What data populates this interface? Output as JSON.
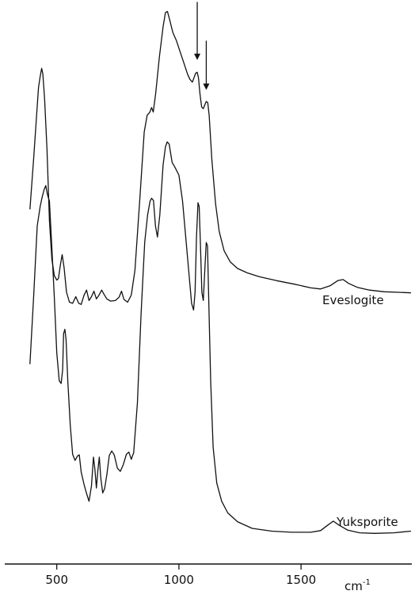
{
  "chart_data": {
    "type": "line",
    "x_axis": {
      "range": [
        300,
        1960
      ],
      "ticks": [
        {
          "value": 500,
          "label": "500"
        },
        {
          "value": 1000,
          "label": "1000"
        },
        {
          "value": 1500,
          "label": "1500"
        }
      ],
      "unit_label": "cm",
      "unit_exponent": "-1"
    },
    "y_axis": {
      "range": [
        0,
        100
      ],
      "visible": false
    },
    "grid": false,
    "legend": "none",
    "series": [
      {
        "name": "Eveslogite",
        "color": "#111111",
        "points": [
          [
            390,
            63
          ],
          [
            405,
            72
          ],
          [
            425,
            85
          ],
          [
            432,
            87
          ],
          [
            438,
            88.5
          ],
          [
            443,
            87.5
          ],
          [
            450,
            83
          ],
          [
            460,
            74
          ],
          [
            470,
            61
          ],
          [
            480,
            54
          ],
          [
            490,
            51
          ],
          [
            500,
            50.2
          ],
          [
            507,
            50.5
          ],
          [
            515,
            53
          ],
          [
            522,
            54.8
          ],
          [
            530,
            52.5
          ],
          [
            540,
            48
          ],
          [
            552,
            46.2
          ],
          [
            565,
            46
          ],
          [
            578,
            47.2
          ],
          [
            590,
            46
          ],
          [
            600,
            45.8
          ],
          [
            612,
            47.5
          ],
          [
            622,
            48.4
          ],
          [
            632,
            46.5
          ],
          [
            642,
            47.2
          ],
          [
            652,
            48.2
          ],
          [
            662,
            46.8
          ],
          [
            672,
            47.4
          ],
          [
            684,
            48.4
          ],
          [
            694,
            47.6
          ],
          [
            705,
            46.8
          ],
          [
            720,
            46.4
          ],
          [
            740,
            46.5
          ],
          [
            755,
            47.1
          ],
          [
            765,
            48.2
          ],
          [
            775,
            46.7
          ],
          [
            790,
            46.2
          ],
          [
            805,
            47.5
          ],
          [
            820,
            52
          ],
          [
            840,
            65
          ],
          [
            858,
            77
          ],
          [
            870,
            80
          ],
          [
            880,
            80.5
          ],
          [
            888,
            81.4
          ],
          [
            895,
            80.6
          ],
          [
            905,
            84
          ],
          [
            920,
            90.5
          ],
          [
            935,
            96
          ],
          [
            945,
            98.6
          ],
          [
            953,
            98.8
          ],
          [
            962,
            97.3
          ],
          [
            975,
            95
          ],
          [
            990,
            93.5
          ],
          [
            1005,
            91.5
          ],
          [
            1020,
            89.5
          ],
          [
            1035,
            87.5
          ],
          [
            1045,
            86.5
          ],
          [
            1055,
            86
          ],
          [
            1062,
            86.8
          ],
          [
            1068,
            87.6
          ],
          [
            1075,
            87.8
          ],
          [
            1080,
            86.8
          ],
          [
            1086,
            84
          ],
          [
            1093,
            81.5
          ],
          [
            1100,
            81.2
          ],
          [
            1107,
            82
          ],
          [
            1112,
            82.5
          ],
          [
            1118,
            82.3
          ],
          [
            1124,
            80
          ],
          [
            1135,
            72
          ],
          [
            1150,
            64
          ],
          [
            1165,
            59
          ],
          [
            1185,
            55.5
          ],
          [
            1210,
            53.5
          ],
          [
            1240,
            52.3
          ],
          [
            1280,
            51.5
          ],
          [
            1330,
            50.8
          ],
          [
            1400,
            50.1
          ],
          [
            1480,
            49.4
          ],
          [
            1540,
            48.8
          ],
          [
            1580,
            48.6
          ],
          [
            1620,
            49.2
          ],
          [
            1650,
            50.1
          ],
          [
            1672,
            50.3
          ],
          [
            1695,
            49.6
          ],
          [
            1730,
            48.9
          ],
          [
            1780,
            48.4
          ],
          [
            1840,
            48.1
          ],
          [
            1900,
            48
          ],
          [
            1950,
            47.9
          ]
        ]
      },
      {
        "name": "Yuksporite",
        "color": "#111111",
        "points": [
          [
            390,
            35
          ],
          [
            405,
            47
          ],
          [
            420,
            60
          ],
          [
            432,
            63.5
          ],
          [
            440,
            65.2
          ],
          [
            448,
            66.5
          ],
          [
            455,
            67.3
          ],
          [
            462,
            65.6
          ],
          [
            470,
            64.5
          ],
          [
            480,
            56
          ],
          [
            490,
            47
          ],
          [
            500,
            37
          ],
          [
            510,
            32
          ],
          [
            518,
            31.5
          ],
          [
            524,
            34
          ],
          [
            528,
            40.5
          ],
          [
            533,
            41.3
          ],
          [
            538,
            39.5
          ],
          [
            545,
            32
          ],
          [
            555,
            24
          ],
          [
            565,
            18.7
          ],
          [
            575,
            17.6
          ],
          [
            585,
            18.4
          ],
          [
            592,
            18.6
          ],
          [
            600,
            15.5
          ],
          [
            612,
            13.2
          ],
          [
            622,
            11.6
          ],
          [
            632,
            10.2
          ],
          [
            642,
            13
          ],
          [
            650,
            18.2
          ],
          [
            656,
            16
          ],
          [
            662,
            12.6
          ],
          [
            668,
            15.7
          ],
          [
            674,
            18.2
          ],
          [
            680,
            14.5
          ],
          [
            688,
            11.7
          ],
          [
            696,
            12.5
          ],
          [
            705,
            15
          ],
          [
            715,
            18.5
          ],
          [
            725,
            19.3
          ],
          [
            735,
            18.6
          ],
          [
            748,
            16.2
          ],
          [
            760,
            15.6
          ],
          [
            772,
            16.8
          ],
          [
            785,
            18.7
          ],
          [
            795,
            19.1
          ],
          [
            805,
            17.8
          ],
          [
            815,
            19
          ],
          [
            830,
            28
          ],
          [
            845,
            44
          ],
          [
            860,
            57
          ],
          [
            872,
            62
          ],
          [
            882,
            64.5
          ],
          [
            888,
            65
          ],
          [
            896,
            64.6
          ],
          [
            904,
            60
          ],
          [
            912,
            58
          ],
          [
            922,
            62
          ],
          [
            935,
            71
          ],
          [
            945,
            74.3
          ],
          [
            952,
            75.2
          ],
          [
            960,
            74.8
          ],
          [
            972,
            71.5
          ],
          [
            985,
            70.5
          ],
          [
            1000,
            69.2
          ],
          [
            1015,
            64.5
          ],
          [
            1028,
            58
          ],
          [
            1040,
            52
          ],
          [
            1052,
            46
          ],
          [
            1060,
            44.8
          ],
          [
            1066,
            48
          ],
          [
            1072,
            58
          ],
          [
            1078,
            64.2
          ],
          [
            1083,
            63.5
          ],
          [
            1088,
            57
          ],
          [
            1094,
            48
          ],
          [
            1100,
            46.5
          ],
          [
            1106,
            52
          ],
          [
            1112,
            57
          ],
          [
            1117,
            56.4
          ],
          [
            1122,
            47
          ],
          [
            1130,
            32
          ],
          [
            1140,
            20
          ],
          [
            1155,
            13.5
          ],
          [
            1175,
            10.2
          ],
          [
            1200,
            8.1
          ],
          [
            1240,
            6.5
          ],
          [
            1300,
            5.3
          ],
          [
            1380,
            4.8
          ],
          [
            1460,
            4.6
          ],
          [
            1540,
            4.6
          ],
          [
            1580,
            4.9
          ],
          [
            1610,
            5.9
          ],
          [
            1632,
            6.6
          ],
          [
            1655,
            5.9
          ],
          [
            1690,
            5
          ],
          [
            1740,
            4.5
          ],
          [
            1800,
            4.4
          ],
          [
            1880,
            4.5
          ],
          [
            1950,
            4.8
          ]
        ]
      }
    ],
    "labels": [
      {
        "text": "Eveslogite",
        "series": "Eveslogite"
      },
      {
        "text": "Yuksporite",
        "series": "Yuksporite"
      }
    ],
    "annotations": [
      {
        "type": "arrow",
        "x": 1075,
        "y_from": 100.5,
        "y_to": 90
      },
      {
        "type": "arrow",
        "x": 1112,
        "y_from": 93.5,
        "y_to": 84.6
      }
    ]
  }
}
